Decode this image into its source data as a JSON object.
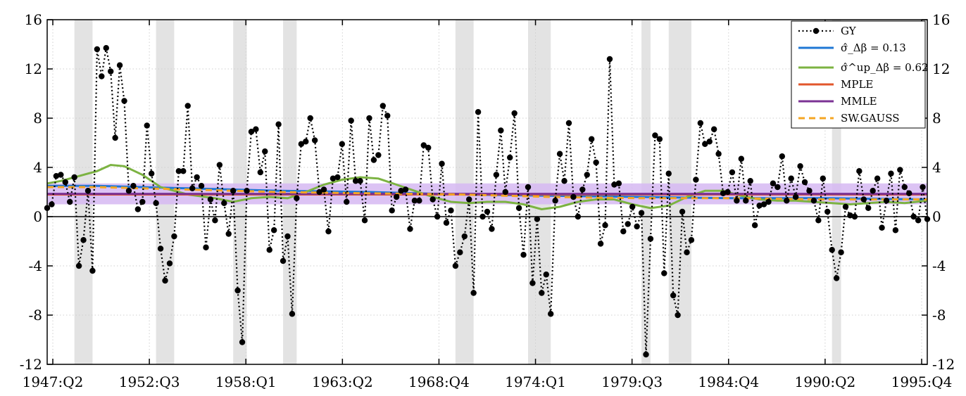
{
  "chart_data": {
    "type": "line",
    "x_tick_labels": [
      "1947:Q2",
      "1952:Q3",
      "1958:Q1",
      "1963:Q2",
      "1968:Q4",
      "1974:Q1",
      "1979:Q3",
      "1984:Q4",
      "1990:Q2",
      "1995:Q4"
    ],
    "x_range": [
      1947.25,
      1995.75
    ],
    "ylim": [
      -12,
      16
    ],
    "y_ticks": [
      16,
      12,
      8,
      4,
      0,
      -4,
      -8,
      -12
    ],
    "y_tick_labels": [
      "16",
      "12",
      "8",
      "4",
      "0",
      "-4",
      "-8",
      "-12"
    ],
    "grid": true,
    "right_axis_mirrored": true,
    "legend_position": "top-right",
    "recession_shading": [
      [
        1948.75,
        1949.75
      ],
      [
        1953.25,
        1954.25
      ],
      [
        1957.5,
        1958.25
      ],
      [
        1960.25,
        1961.0
      ],
      [
        1969.75,
        1970.75
      ],
      [
        1973.75,
        1975.0
      ],
      [
        1980.0,
        1980.5
      ],
      [
        1981.5,
        1982.75
      ],
      [
        1990.5,
        1991.0
      ]
    ],
    "band": {
      "color": "#d6b8f2",
      "upper": 2.7,
      "lower": 1.0
    },
    "legend": [
      {
        "key": "gy",
        "label": "GY",
        "style": "dotted-markers",
        "color": "#000000"
      },
      {
        "key": "sigma",
        "label": "σ̂_Δβ = 0.13",
        "style": "solid",
        "color": "#1f77d4"
      },
      {
        "key": "sigma_up",
        "label": "σ̂^up_Δβ = 0.62",
        "style": "solid",
        "color": "#7cb342"
      },
      {
        "key": "mple",
        "label": "MPLE",
        "style": "solid",
        "color": "#e2562b"
      },
      {
        "key": "mmle",
        "label": "MMLE",
        "style": "solid",
        "color": "#7b3294"
      },
      {
        "key": "swgauss",
        "label": "SW.GAUSS",
        "style": "dashed",
        "color": "#f5a623"
      }
    ],
    "series": [
      {
        "name": "GY",
        "x": [
          1947.25,
          1947.5,
          1947.75,
          1948.0,
          1948.25,
          1948.5,
          1948.75,
          1949.0,
          1949.25,
          1949.5,
          1949.75,
          1950.0,
          1950.25,
          1950.5,
          1950.75,
          1951.0,
          1951.25,
          1951.5,
          1951.75,
          1952.0,
          1952.25,
          1952.5,
          1952.75,
          1953.0,
          1953.25,
          1953.5,
          1953.75,
          1954.0,
          1954.25,
          1954.5,
          1954.75,
          1955.0,
          1955.25,
          1955.5,
          1955.75,
          1956.0,
          1956.25,
          1956.5,
          1956.75,
          1957.0,
          1957.25,
          1957.5,
          1957.75,
          1958.0,
          1958.25,
          1958.5,
          1958.75,
          1959.0,
          1959.25,
          1959.5,
          1959.75,
          1960.0,
          1960.25,
          1960.5,
          1960.75,
          1961.0,
          1961.25,
          1961.5,
          1961.75,
          1962.0,
          1962.25,
          1962.5,
          1962.75,
          1963.0,
          1963.25,
          1963.5,
          1963.75,
          1964.0,
          1964.25,
          1964.5,
          1964.75,
          1965.0,
          1965.25,
          1965.5,
          1965.75,
          1966.0,
          1966.25,
          1966.5,
          1966.75,
          1967.0,
          1967.25,
          1967.5,
          1967.75,
          1968.0,
          1968.25,
          1968.5,
          1968.75,
          1969.0,
          1969.25,
          1969.5,
          1969.75,
          1970.0,
          1970.25,
          1970.5,
          1970.75,
          1971.0,
          1971.25,
          1971.5,
          1971.75,
          1972.0,
          1972.25,
          1972.5,
          1972.75,
          1973.0,
          1973.25,
          1973.5,
          1973.75,
          1974.0,
          1974.25,
          1974.5,
          1974.75,
          1975.0,
          1975.25,
          1975.5,
          1975.75,
          1976.0,
          1976.25,
          1976.5,
          1976.75,
          1977.0,
          1977.25,
          1977.5,
          1977.75,
          1978.0,
          1978.25,
          1978.5,
          1978.75,
          1979.0,
          1979.25,
          1979.5,
          1979.75,
          1980.0,
          1980.25,
          1980.5,
          1980.75,
          1981.0,
          1981.25,
          1981.5,
          1981.75,
          1982.0,
          1982.25,
          1982.5,
          1982.75,
          1983.0,
          1983.25,
          1983.5,
          1983.75,
          1984.0,
          1984.25,
          1984.5,
          1984.75,
          1985.0,
          1985.25,
          1985.5,
          1985.75,
          1986.0,
          1986.25,
          1986.5,
          1986.75,
          1987.0,
          1987.25,
          1987.5,
          1987.75,
          1988.0,
          1988.25,
          1988.5,
          1988.75,
          1989.0,
          1989.25,
          1989.5,
          1989.75,
          1990.0,
          1990.25,
          1990.5,
          1990.75,
          1991.0,
          1991.25,
          1991.5,
          1991.75,
          1992.0,
          1992.25,
          1992.5,
          1992.75,
          1993.0,
          1993.25,
          1993.5,
          1993.75,
          1994.0,
          1994.25,
          1994.5,
          1994.75,
          1995.0,
          1995.25,
          1995.5,
          1995.75
        ],
        "values": [
          0.7,
          1.0,
          3.3,
          3.4,
          2.8,
          1.2,
          3.2,
          -4.0,
          -1.9,
          2.1,
          -4.4,
          13.6,
          11.4,
          13.7,
          11.8,
          6.4,
          12.3,
          9.4,
          2.1,
          2.5,
          0.6,
          1.2,
          7.4,
          3.5,
          1.1,
          -2.6,
          -5.2,
          -3.8,
          -1.6,
          3.7,
          3.7,
          9.0,
          2.3,
          3.2,
          2.5,
          -2.5,
          1.4,
          -0.3,
          4.2,
          1.1,
          -1.4,
          2.1,
          -6.0,
          -10.2,
          2.1,
          6.9,
          7.1,
          3.6,
          5.3,
          -2.7,
          -1.1,
          7.5,
          -3.6,
          -1.6,
          -7.9,
          1.5,
          5.9,
          6.1,
          8.0,
          6.2,
          2.0,
          2.2,
          -1.2,
          3.1,
          3.2,
          5.9,
          1.2,
          7.8,
          2.9,
          2.9,
          -0.3,
          8.0,
          4.6,
          5.0,
          9.0,
          8.2,
          0.5,
          1.6,
          2.1,
          2.2,
          -1.0,
          1.3,
          1.3,
          5.8,
          5.6,
          1.4,
          0.0,
          4.3,
          -0.5,
          0.5,
          -4.0,
          -2.9,
          -1.6,
          1.4,
          -6.2,
          8.5,
          0.0,
          0.4,
          -1.0,
          3.4,
          7.0,
          2.0,
          4.8,
          8.4,
          0.7,
          -3.1,
          2.4,
          -5.4,
          -0.2,
          -6.2,
          -4.7,
          -7.9,
          1.3,
          5.1,
          2.9,
          7.6,
          1.6,
          0.0,
          2.2,
          3.4,
          6.3,
          4.4,
          -2.2,
          -0.7,
          12.8,
          2.6,
          2.7,
          -1.2,
          -0.6,
          0.8,
          -0.8,
          0.3,
          -11.2,
          -1.8,
          6.6,
          6.3,
          -4.6,
          3.5,
          -6.4,
          -8.0,
          0.4,
          -2.9,
          -1.9,
          3.0,
          7.6,
          5.9,
          6.1,
          7.1,
          5.1,
          1.9,
          2.0,
          3.6,
          1.3,
          4.7,
          1.3,
          2.9,
          -0.7,
          0.9,
          1.0,
          1.2,
          2.7,
          2.4,
          4.9,
          1.3,
          3.1,
          1.6,
          4.1,
          2.8,
          2.1,
          1.3,
          -0.3,
          3.1,
          0.4,
          -2.7,
          -5.0,
          -2.9,
          0.8,
          0.1,
          0.0,
          3.7,
          1.4,
          0.7,
          2.1,
          3.1,
          -0.9,
          1.3,
          3.5,
          -1.1,
          3.8,
          2.4,
          1.9,
          0.0,
          -0.3,
          2.4,
          -0.2
        ]
      },
      {
        "name": "σ̂_Δβ = 0.13",
        "x": [
          1947.25,
          1950.0,
          1955.0,
          1960.0,
          1965.0,
          1970.0,
          1975.0,
          1980.0,
          1985.0,
          1990.0,
          1995.75
        ],
        "values": [
          2.5,
          2.5,
          2.3,
          2.1,
          2.0,
          1.8,
          1.7,
          1.6,
          1.5,
          1.5,
          1.4
        ]
      },
      {
        "name": "σ̂^up_Δβ = 0.62",
        "x": [
          1947.25,
          1948.0,
          1949.0,
          1950.0,
          1950.75,
          1951.5,
          1952.5,
          1953.5,
          1955.0,
          1956.5,
          1957.5,
          1958.5,
          1959.5,
          1960.5,
          1961.5,
          1962.5,
          1963.5,
          1964.5,
          1965.5,
          1966.5,
          1967.5,
          1968.5,
          1969.5,
          1970.5,
          1971.5,
          1972.5,
          1973.5,
          1974.5,
          1975.5,
          1976.5,
          1977.5,
          1978.5,
          1979.5,
          1980.5,
          1981.5,
          1982.5,
          1983.5,
          1984.5,
          1985.5,
          1986.5,
          1987.5,
          1988.5,
          1989.5,
          1990.5,
          1991.5,
          1992.5,
          1993.5,
          1994.5,
          1995.75
        ],
        "values": [
          2.7,
          2.9,
          3.3,
          3.7,
          4.2,
          4.1,
          3.4,
          2.4,
          1.8,
          1.5,
          1.2,
          1.5,
          1.6,
          1.5,
          2.0,
          2.6,
          3.0,
          3.2,
          3.1,
          2.6,
          2.1,
          1.6,
          1.2,
          1.1,
          1.2,
          1.2,
          1.0,
          0.6,
          0.8,
          1.2,
          1.4,
          1.4,
          1.0,
          0.7,
          0.9,
          1.6,
          2.1,
          2.1,
          1.7,
          1.4,
          1.3,
          1.3,
          1.2,
          1.1,
          1.0,
          1.1,
          1.2,
          1.1,
          1.3
        ]
      },
      {
        "name": "MPLE",
        "x": [
          1947.25,
          1995.75
        ],
        "values": [
          1.8,
          1.8
        ]
      },
      {
        "name": "MMLE",
        "x": [
          1947.25,
          1995.75
        ],
        "values": [
          1.85,
          1.85
        ]
      },
      {
        "name": "SW.GAUSS",
        "x": [
          1947.25,
          1950.0,
          1955.0,
          1960.0,
          1965.0,
          1970.0,
          1975.0,
          1980.0,
          1985.0,
          1990.0,
          1995.75
        ],
        "values": [
          2.4,
          2.4,
          2.2,
          2.0,
          1.9,
          1.8,
          1.6,
          1.5,
          1.5,
          1.4,
          1.4
        ]
      }
    ]
  }
}
